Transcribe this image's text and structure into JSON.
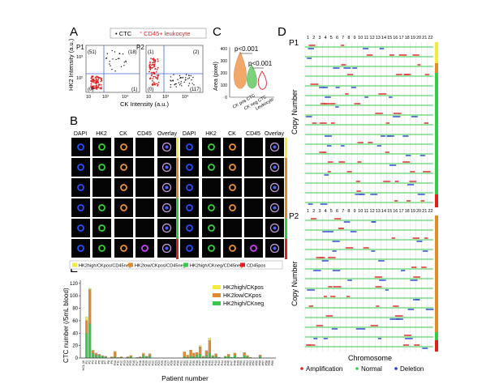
{
  "panel_labels": {
    "A": "A",
    "B": "B",
    "C": "C",
    "D": "D",
    "E": "E"
  },
  "panelA": {
    "legend_ctc": "CTC",
    "legend_leuko": "CD45+ leukocyte",
    "p1": {
      "label": "P1",
      "q_ul": "(51)",
      "q_ur": "(18)",
      "q_ll": "(0)",
      "q_lr": "(1)"
    },
    "p2": {
      "label": "P2",
      "q_ul": "(1)",
      "q_ur": "(2)",
      "q_ll": "(0)",
      "q_lr": "(117)"
    },
    "xlabel": "CK Intensity (a.u.)",
    "ylabel": "HK2 Intensity (a.u.)",
    "ticks": [
      "10",
      "10²",
      "10³",
      "10⁴"
    ],
    "yticks": [
      "10²",
      "10³"
    ]
  },
  "panelB": {
    "headers": [
      "DAPI",
      "HK2",
      "CK",
      "CD45",
      "Overlay"
    ],
    "legend": [
      {
        "label": "HK2high/CKpos/CD45neg",
        "color": "#f2ea3c"
      },
      {
        "label": "HK2low/CKpos/CD45neg",
        "color": "#e08a2c"
      },
      {
        "label": "HK2high/CKneg/CD45neg",
        "color": "#38c94a"
      },
      {
        "label": "CD45pos",
        "color": "#e02020"
      }
    ]
  },
  "panelC": {
    "ylabel": "Area (pixel)",
    "yticks": [
      "0",
      "100",
      "200",
      "300",
      "400"
    ],
    "p1": "p<0.001",
    "p2": "p<0.001",
    "groups": [
      "CK pos CTC",
      "CK neg CTC",
      "Leukocyte"
    ],
    "colors": [
      "#f2a869",
      "#7fd07a",
      "#e8303a"
    ]
  },
  "panelD": {
    "p1": "P1",
    "p2": "P2",
    "ylabel": "Copy Number",
    "xlabel": "Chromosome",
    "chromosomes": [
      "1",
      "2",
      "3",
      "4",
      "5",
      "6",
      "7",
      "8",
      "9",
      "10",
      "11",
      "12",
      "13",
      "14",
      "15",
      "16",
      "17",
      "18",
      "19",
      "20",
      "21",
      "22"
    ],
    "legend": [
      {
        "label": "Amplification",
        "color": "#e02020"
      },
      {
        "label": "Normal",
        "color": "#38c94a"
      },
      {
        "label": "Deletion",
        "color": "#2040d0"
      }
    ]
  },
  "chart_data": {
    "type": "bar",
    "ylabel": "CTC number (/5mL blood)",
    "xlabel": "Patient number",
    "yticks": [
      "0",
      "20",
      "40",
      "60",
      "80",
      "100",
      "120"
    ],
    "legend": [
      {
        "name": "HK2high/CKpos",
        "color": "#f2ea3c"
      },
      {
        "name": "HK2low/CKpos",
        "color": "#e08a2c"
      },
      {
        "name": "HK2high/CKneg",
        "color": "#38c94a"
      }
    ],
    "categories": [
      "HC1-10",
      "P1",
      "P2",
      "P3",
      "P4",
      "P5",
      "P6",
      "P7",
      "P8",
      "P9",
      "P10",
      "P11",
      "P12",
      "P13",
      "P14",
      "P15",
      "P16",
      "P17",
      "P18",
      "P19",
      "P20",
      "P21",
      "P22",
      "P23",
      "P24",
      "P25",
      "P26",
      "P27",
      "P28",
      "P29",
      "P30",
      "P31",
      "P32",
      "P33",
      "P34",
      "P35",
      "P36",
      "P37",
      "P38",
      "P39",
      "P40",
      "P41",
      "P42",
      "P43",
      "P44",
      "P45",
      "P46",
      "P47",
      "P48",
      "P49",
      "P50",
      "P51",
      "P52",
      "P53",
      "P54",
      "P55",
      "P56",
      "P57",
      "P58",
      "P59",
      "P60"
    ],
    "series": [
      {
        "name": "HK2high/CKneg",
        "values": [
          0,
          40,
          55,
          7,
          5,
          4,
          3,
          2,
          0,
          1,
          2,
          0,
          1,
          0,
          1,
          2,
          0,
          1,
          1,
          4,
          2,
          3,
          0,
          0,
          0,
          0,
          0,
          0,
          0,
          0,
          0,
          0,
          2,
          1,
          3,
          2,
          5,
          6,
          1,
          4,
          8,
          2,
          3,
          1,
          0,
          2,
          3,
          1,
          4,
          0,
          1,
          4,
          2,
          1,
          0,
          0,
          3,
          0,
          0,
          0,
          0
        ]
      },
      {
        "name": "HK2low/CKpos",
        "values": [
          0,
          20,
          55,
          5,
          3,
          2,
          1,
          1,
          0,
          1,
          8,
          1,
          1,
          0,
          1,
          2,
          0,
          0,
          1,
          3,
          1,
          4,
          0,
          0,
          0,
          0,
          0,
          0,
          0,
          0,
          0,
          0,
          8,
          3,
          10,
          6,
          4,
          12,
          2,
          8,
          20,
          2,
          4,
          0,
          0,
          1,
          3,
          0,
          4,
          1,
          0,
          5,
          2,
          0,
          0,
          0,
          2,
          0,
          0,
          0,
          0
        ]
      },
      {
        "name": "HK2high/CKpos",
        "values": [
          0,
          6,
          2,
          1,
          0,
          0,
          0,
          0,
          0,
          0,
          1,
          0,
          0,
          0,
          0,
          0,
          0,
          0,
          0,
          1,
          0,
          0,
          0,
          0,
          0,
          0,
          0,
          0,
          0,
          0,
          0,
          0,
          0,
          1,
          0,
          0,
          0,
          2,
          0,
          0,
          4,
          0,
          0,
          0,
          0,
          0,
          0,
          0,
          0,
          0,
          0,
          0,
          0,
          0,
          0,
          0,
          0,
          0,
          0,
          0,
          0
        ]
      }
    ],
    "ylim": [
      0,
      125
    ]
  }
}
